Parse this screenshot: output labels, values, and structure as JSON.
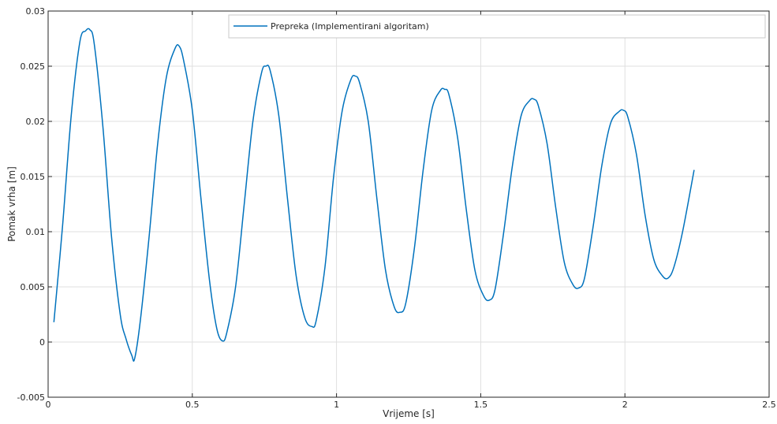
{
  "chart_data": {
    "type": "line",
    "xlabel": "Vrijeme [s]",
    "ylabel": "Pomak vrha [m]",
    "xlim": [
      0,
      2.5
    ],
    "ylim": [
      -0.005,
      0.03
    ],
    "xticks": [
      0,
      0.5,
      1,
      1.5,
      2,
      2.5
    ],
    "xtick_labels": [
      "0",
      "0.5",
      "1",
      "1.5",
      "2",
      "2.5"
    ],
    "yticks": [
      -0.005,
      0,
      0.005,
      0.01,
      0.015,
      0.02,
      0.025,
      0.03
    ],
    "ytick_labels": [
      "-0.005",
      "0",
      "0.005",
      "0.01",
      "0.015",
      "0.02",
      "0.025",
      "0.03"
    ],
    "grid": true,
    "legend_position": "top-right",
    "series": [
      {
        "name": "Prepreka (Implementirani algoritam)",
        "color": "#0072BD",
        "x": [
          0.02,
          0.05,
          0.08,
          0.11,
          0.13,
          0.145,
          0.16,
          0.19,
          0.22,
          0.25,
          0.27,
          0.29,
          0.3,
          0.32,
          0.35,
          0.38,
          0.41,
          0.44,
          0.455,
          0.47,
          0.5,
          0.53,
          0.56,
          0.585,
          0.605,
          0.62,
          0.65,
          0.68,
          0.71,
          0.74,
          0.755,
          0.77,
          0.8,
          0.83,
          0.86,
          0.89,
          0.915,
          0.93,
          0.96,
          0.99,
          1.02,
          1.05,
          1.065,
          1.08,
          1.11,
          1.14,
          1.17,
          1.2,
          1.22,
          1.24,
          1.27,
          1.3,
          1.33,
          1.36,
          1.375,
          1.39,
          1.42,
          1.45,
          1.48,
          1.51,
          1.53,
          1.55,
          1.58,
          1.61,
          1.64,
          1.67,
          1.685,
          1.7,
          1.73,
          1.76,
          1.79,
          1.82,
          1.84,
          1.86,
          1.89,
          1.92,
          1.95,
          1.98,
          1.995,
          2.01,
          2.04,
          2.07,
          2.1,
          2.13,
          2.15,
          2.17,
          2.2,
          2.24
        ],
        "values": [
          0.0018,
          0.0105,
          0.0205,
          0.0272,
          0.0282,
          0.0283,
          0.027,
          0.0195,
          0.0095,
          0.0025,
          0.0003,
          -0.0012,
          -0.0015,
          0.002,
          0.0095,
          0.018,
          0.024,
          0.0266,
          0.0268,
          0.0255,
          0.021,
          0.013,
          0.0055,
          0.0012,
          0.0001,
          0.0009,
          0.005,
          0.0125,
          0.02,
          0.0244,
          0.025,
          0.0246,
          0.0205,
          0.013,
          0.006,
          0.0022,
          0.0014,
          0.002,
          0.0068,
          0.015,
          0.021,
          0.0238,
          0.0241,
          0.0235,
          0.02,
          0.013,
          0.0065,
          0.0032,
          0.0027,
          0.0035,
          0.0085,
          0.0155,
          0.021,
          0.0228,
          0.0229,
          0.0224,
          0.0185,
          0.012,
          0.0065,
          0.0042,
          0.0038,
          0.0048,
          0.01,
          0.016,
          0.0205,
          0.0219,
          0.022,
          0.0214,
          0.018,
          0.0122,
          0.0072,
          0.0052,
          0.0049,
          0.0058,
          0.0105,
          0.016,
          0.0198,
          0.0209,
          0.021,
          0.0204,
          0.017,
          0.0115,
          0.0075,
          0.006,
          0.0058,
          0.0068,
          0.01,
          0.0156
        ]
      }
    ]
  }
}
